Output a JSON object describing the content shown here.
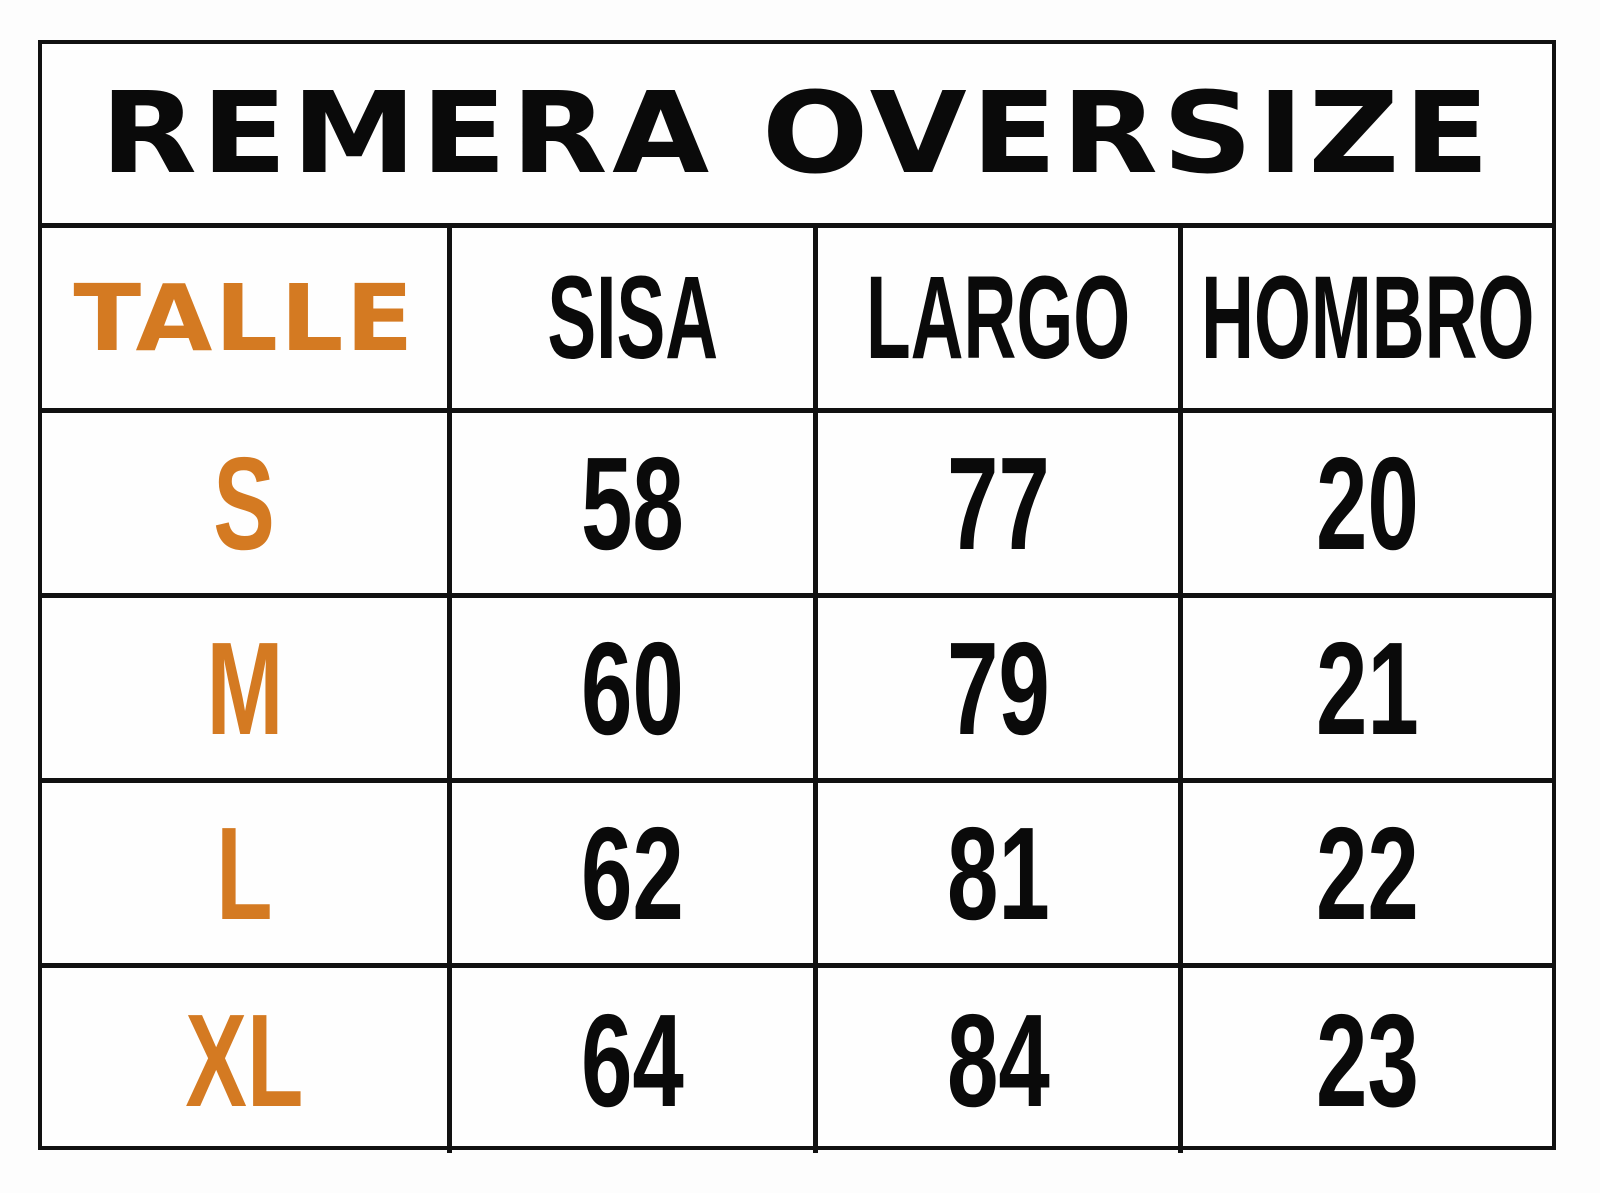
{
  "title": "REMERA OVERSIZE",
  "accent_color": "#d47a22",
  "headers": [
    "TALLE",
    "SISA",
    "LARGO",
    "HOMBRO"
  ],
  "rows": [
    {
      "talle": "S",
      "sisa": "58",
      "largo": "77",
      "hombro": "20"
    },
    {
      "talle": "M",
      "sisa": "60",
      "largo": "79",
      "hombro": "21"
    },
    {
      "talle": "L",
      "sisa": "62",
      "largo": "81",
      "hombro": "22"
    },
    {
      "talle": "XL",
      "sisa": "64",
      "largo": "84",
      "hombro": "23"
    }
  ]
}
